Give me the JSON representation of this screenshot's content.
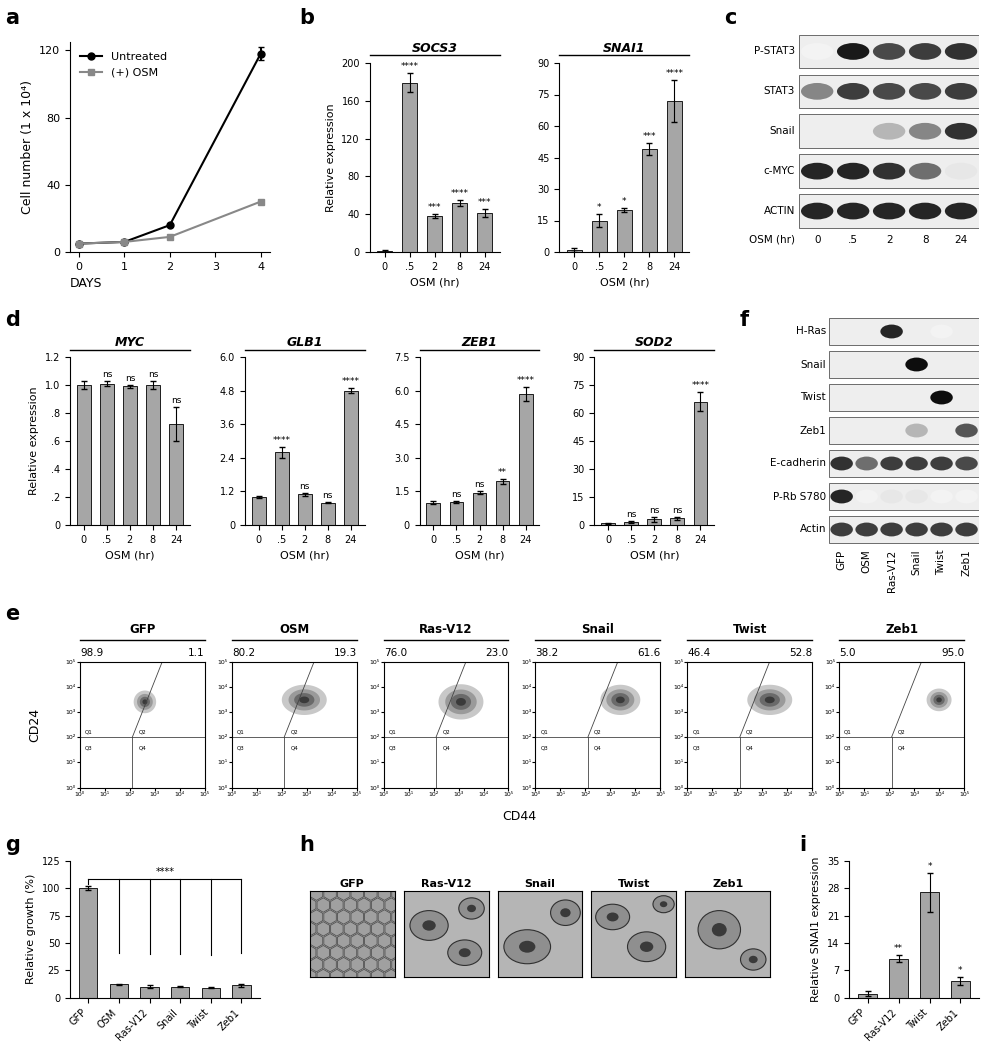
{
  "chart_data": [
    {
      "panel": "a",
      "type": "line",
      "x": [
        0,
        1,
        2,
        4
      ],
      "xlabel": "DAYS",
      "ylabel": "Cell number (1 x 10⁴)",
      "xlim": [
        -0.2,
        4.2
      ],
      "xticks": [
        0,
        1,
        2,
        3,
        4
      ],
      "ylim": [
        0,
        125
      ],
      "yticks": [
        0,
        40,
        80,
        120
      ],
      "legend": "upper left",
      "series": [
        {
          "name": "Untreated",
          "color": "#000000",
          "marker": "circle",
          "values": [
            5,
            6,
            16,
            118
          ],
          "errors": [
            0.3,
            0.3,
            0.5,
            4
          ]
        },
        {
          "name": "(+) OSM",
          "color": "#888888",
          "marker": "square",
          "values": [
            5,
            6,
            9,
            30
          ],
          "errors": [
            0.3,
            0.3,
            0.4,
            1
          ]
        }
      ]
    },
    {
      "panel": "b",
      "type": "bar",
      "title": "SOCS3",
      "categories": [
        "0",
        ".5",
        "2",
        "8",
        "24"
      ],
      "values": [
        1,
        179,
        38,
        52,
        41
      ],
      "errors": [
        1,
        10,
        2,
        3,
        4
      ],
      "annotations": [
        null,
        "****",
        "***",
        "****",
        "***"
      ],
      "ylabel": "Relative expression",
      "xlabel": "OSM (hr)",
      "ylim": [
        0,
        200
      ],
      "yticks": [
        0,
        40,
        80,
        120,
        160,
        200
      ],
      "color": "#a6a6a6"
    },
    {
      "type": "bar",
      "title": "SNAI1",
      "categories": [
        "0",
        ".5",
        "2",
        "8",
        "24"
      ],
      "values": [
        1,
        15,
        20,
        49,
        72
      ],
      "errors": [
        1,
        3,
        1,
        3,
        10
      ],
      "annotations": [
        null,
        "*",
        "*",
        "***",
        "****"
      ],
      "xlabel": "OSM (hr)",
      "ylim": [
        0,
        90
      ],
      "yticks": [
        0,
        15,
        30,
        45,
        60,
        75,
        90
      ],
      "color": "#a6a6a6"
    },
    {
      "panel": "d",
      "type": "bar",
      "title": "MYC",
      "categories": [
        "0",
        ".5",
        "2",
        "8",
        "24"
      ],
      "values": [
        1,
        1.01,
        0.99,
        1.0,
        0.72
      ],
      "errors": [
        0.03,
        0.02,
        0.01,
        0.03,
        0.12
      ],
      "annotations": [
        null,
        "ns",
        "ns",
        "ns",
        "ns"
      ],
      "ylabel": "Relative expression",
      "xlabel": "OSM (hr)",
      "ylim": [
        0,
        1.2
      ],
      "yticks": [
        0,
        {
          "value": 0.2,
          "label": ".2"
        },
        {
          "value": 0.4,
          "label": ".4"
        },
        {
          "value": 0.6,
          "label": ".6"
        },
        {
          "value": 0.8,
          "label": ".8"
        },
        {
          "value": 1.0,
          "label": "1.0"
        },
        {
          "value": 1.2,
          "label": "1.2"
        }
      ],
      "color": "#a6a6a6"
    },
    {
      "type": "bar",
      "title": "GLB1",
      "categories": [
        "0",
        ".5",
        "2",
        "8",
        "24"
      ],
      "values": [
        1,
        2.6,
        1.1,
        0.8,
        4.8
      ],
      "errors": [
        0.03,
        0.2,
        0.05,
        0.03,
        0.1
      ],
      "annotations": [
        null,
        "****",
        "ns",
        "ns",
        "****"
      ],
      "xlabel": "OSM (hr)",
      "ylim": [
        0,
        6.0
      ],
      "yticks": [
        0,
        {
          "value": 1.2,
          "label": "1.2"
        },
        {
          "value": 2.4,
          "label": "2.4"
        },
        {
          "value": 3.6,
          "label": "3.6"
        },
        {
          "value": 4.8,
          "label": "4.8"
        },
        {
          "value": 6.0,
          "label": "6.0"
        }
      ],
      "color": "#a6a6a6"
    },
    {
      "type": "bar",
      "title": "ZEB1",
      "categories": [
        "0",
        ".5",
        "2",
        "8",
        "24"
      ],
      "values": [
        1,
        1.02,
        1.45,
        1.95,
        5.85
      ],
      "errors": [
        0.08,
        0.05,
        0.05,
        0.1,
        0.3
      ],
      "annotations": [
        null,
        "ns",
        "ns",
        "**",
        "****"
      ],
      "xlabel": "OSM (hr)",
      "ylim": [
        0,
        7.5
      ],
      "yticks": [
        0,
        {
          "value": 1.5,
          "label": "1.5"
        },
        {
          "value": 3.0,
          "label": "3.0"
        },
        {
          "value": 4.5,
          "label": "4.5"
        },
        {
          "value": 6.0,
          "label": "6.0"
        },
        {
          "value": 7.5,
          "label": "7.5"
        }
      ],
      "color": "#a6a6a6"
    },
    {
      "type": "bar",
      "title": "SOD2",
      "categories": [
        "0",
        ".5",
        "2",
        "8",
        "24"
      ],
      "values": [
        1,
        1.5,
        3,
        3.5,
        66
      ],
      "errors": [
        0.2,
        0.5,
        1.5,
        1,
        5
      ],
      "annotations": [
        null,
        "ns",
        "ns",
        "ns",
        "****"
      ],
      "xlabel": "OSM (hr)",
      "ylim": [
        0,
        90
      ],
      "yticks": [
        0,
        15,
        30,
        45,
        60,
        75,
        90
      ],
      "color": "#a6a6a6"
    },
    {
      "panel": "g",
      "type": "bar",
      "categories": [
        "GFP",
        "OSM",
        "Ras-V12",
        "Snail",
        "Twist",
        "Zeb1"
      ],
      "values": [
        100,
        12,
        10,
        10,
        9,
        11
      ],
      "errors": [
        2,
        0.5,
        1,
        0.5,
        0.5,
        1
      ],
      "annotation": "****",
      "ylabel": "Relative growth (%)",
      "ylim": [
        0,
        125
      ],
      "yticks": [
        0,
        25,
        50,
        75,
        100,
        125
      ],
      "color": "#a6a6a6"
    },
    {
      "panel": "i",
      "type": "bar",
      "categories": [
        "GFP",
        "Ras-V12",
        "Twist",
        "Zeb1"
      ],
      "values": [
        1,
        10,
        27,
        4.2
      ],
      "errors": [
        0.6,
        1,
        5,
        1
      ],
      "annotations": [
        null,
        "**",
        "*",
        "*"
      ],
      "ylabel": "Relative SNAI1 expression",
      "ylim": [
        0,
        35
      ],
      "yticks": [
        0,
        7,
        14,
        21,
        28,
        35
      ],
      "color": "#a6a6a6"
    }
  ],
  "blots": [
    {
      "panel": "c",
      "lanes": [
        "0",
        ".5",
        "2",
        "8",
        "24"
      ],
      "lane_title": "OSM (hr)",
      "rows": [
        {
          "label": "P-STAT3",
          "bands": [
            0.05,
            0.95,
            0.75,
            0.8,
            0.85
          ]
        },
        {
          "label": "STAT3",
          "bands": [
            0.5,
            0.8,
            0.75,
            0.75,
            0.8
          ]
        },
        {
          "label": "Snail",
          "bands": [
            0,
            0,
            0.3,
            0.5,
            0.85
          ]
        },
        {
          "label": "c-MYC",
          "bands": [
            0.9,
            0.9,
            0.85,
            0.6,
            0.1
          ]
        },
        {
          "label": "ACTIN",
          "bands": [
            0.9,
            0.9,
            0.9,
            0.9,
            0.9
          ]
        }
      ]
    },
    {
      "panel": "f",
      "lanes": [
        "GFP",
        "OSM",
        "Ras-V12",
        "Snail",
        "Twist",
        "Zeb1"
      ],
      "rows": [
        {
          "label": "H-Ras",
          "bands": [
            0,
            0,
            0.9,
            0,
            0.05,
            0
          ]
        },
        {
          "label": "Snail",
          "bands": [
            0,
            0,
            0,
            1,
            0,
            0
          ]
        },
        {
          "label": "Twist",
          "bands": [
            0,
            0,
            0,
            0,
            1,
            0
          ]
        },
        {
          "label": "Zeb1",
          "bands": [
            0,
            0,
            0,
            0.3,
            0,
            0.7
          ]
        },
        {
          "label": "E-cadherin",
          "bands": [
            0.85,
            0.6,
            0.8,
            0.8,
            0.8,
            0.75
          ]
        },
        {
          "label": "P-Rb S780",
          "bands": [
            0.9,
            0.05,
            0.1,
            0.1,
            0.05,
            0.05
          ]
        },
        {
          "label": "Actin",
          "bands": [
            0.8,
            0.8,
            0.8,
            0.8,
            0.8,
            0.8
          ]
        }
      ]
    }
  ],
  "flow": {
    "panel": "e",
    "xlabel": "CD44",
    "ylabel": "CD24",
    "log": true,
    "xlim": [
      1,
      100000
    ],
    "ylim": [
      1,
      100000
    ],
    "xticks": [
      {
        "value": 1,
        "label": "10⁰"
      },
      {
        "value": 10,
        "label": "10¹"
      },
      {
        "value": 100,
        "label": "10²"
      },
      {
        "value": 1000,
        "label": "10³"
      },
      {
        "value": 10000,
        "label": "10⁴"
      },
      {
        "value": 100000,
        "label": "10⁵"
      }
    ],
    "yticks": [
      {
        "value": 1,
        "label": "10⁰"
      },
      {
        "value": 10,
        "label": "10¹"
      },
      {
        "value": 100,
        "label": "10²"
      },
      {
        "value": 1000,
        "label": "10³"
      },
      {
        "value": 10000,
        "label": "10⁴"
      },
      {
        "value": 100000,
        "label": "10⁵"
      }
    ],
    "gates": [
      "Q1",
      "Q2",
      "Q3",
      "Q4"
    ],
    "plots": [
      {
        "title": "GFP",
        "left": 98.9,
        "right": 1.1,
        "population": {
          "cd44": 400,
          "cd24": 2500,
          "spread_decades": [
            0.45,
            0.45
          ]
        }
      },
      {
        "title": "OSM",
        "left": 80.2,
        "right": 19.3,
        "population": {
          "cd44": 800,
          "cd24": 3000,
          "spread_decades": [
            0.9,
            0.6
          ]
        }
      },
      {
        "title": "Ras-V12",
        "left": 76.0,
        "right": 23.0,
        "population": {
          "cd44": 1250,
          "cd24": 2500,
          "spread_decades": [
            0.9,
            0.7
          ]
        }
      },
      {
        "title": "Snail",
        "left": 38.2,
        "right": 61.6,
        "population": {
          "cd44": 2500,
          "cd24": 3000,
          "spread_decades": [
            0.8,
            0.6
          ]
        }
      },
      {
        "title": "Twist",
        "left": 46.4,
        "right": 52.8,
        "population": {
          "cd44": 2000,
          "cd24": 3000,
          "spread_decades": [
            0.9,
            0.6
          ]
        }
      },
      {
        "title": "Zeb1",
        "left": 5.0,
        "right": 95.0,
        "population": {
          "cd44": 10000,
          "cd24": 3000,
          "spread_decades": [
            0.5,
            0.45
          ]
        }
      }
    ]
  },
  "images": {
    "panel": "h",
    "labels": [
      "GFP",
      "Ras-V12",
      "Snail",
      "Twist",
      "Zeb1"
    ]
  }
}
